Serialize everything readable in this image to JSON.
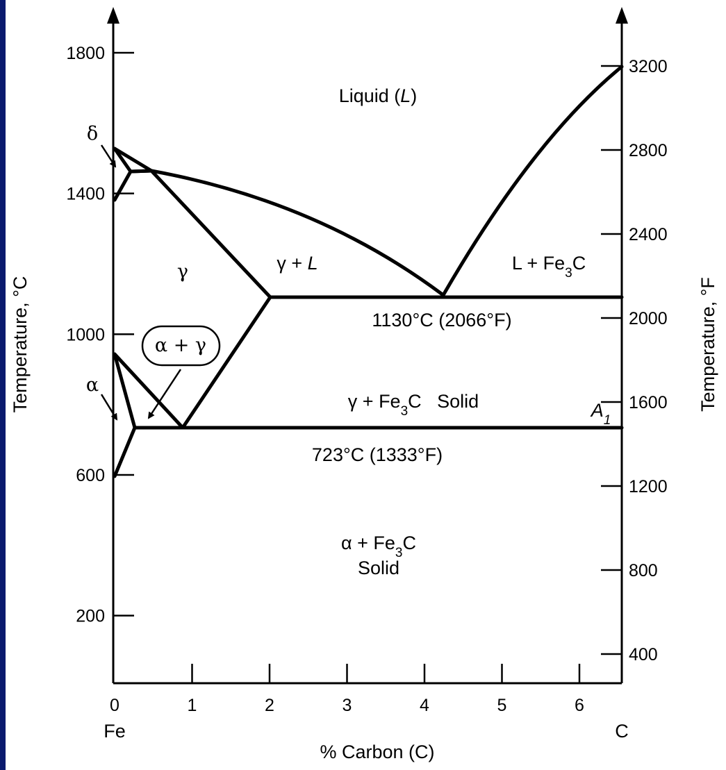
{
  "diagram": {
    "left_axis": {
      "label": "Temperature, °C",
      "ticks": [
        {
          "value": 1800,
          "label": "1800"
        },
        {
          "value": 1400,
          "label": "1400"
        },
        {
          "value": 1000,
          "label": "1000"
        },
        {
          "value": 600,
          "label": "600"
        },
        {
          "value": 200,
          "label": "200"
        }
      ]
    },
    "right_axis": {
      "label": "Temperature, °F",
      "ticks": [
        {
          "value": 3200,
          "label": "3200"
        },
        {
          "value": 2800,
          "label": "2800"
        },
        {
          "value": 2400,
          "label": "2400"
        },
        {
          "value": 2000,
          "label": "2000"
        },
        {
          "value": 1600,
          "label": "1600"
        },
        {
          "value": 1200,
          "label": "1200"
        },
        {
          "value": 800,
          "label": "800"
        },
        {
          "value": 400,
          "label": "400"
        }
      ]
    },
    "x_axis": {
      "label": "% Carbon (C)",
      "ticks": [
        {
          "value": 0,
          "label": "0"
        },
        {
          "value": 1,
          "label": "1"
        },
        {
          "value": 2,
          "label": "2"
        },
        {
          "value": 3,
          "label": "3"
        },
        {
          "value": 4,
          "label": "4"
        },
        {
          "value": 5,
          "label": "5"
        },
        {
          "value": 6,
          "label": "6"
        }
      ],
      "left_end_label": "Fe",
      "right_end_label": "C"
    },
    "regions": {
      "liquid": "Liquid (L)",
      "gamma": "γ",
      "gamma_liquid": "γ + L",
      "liquid_fe3c": "L + Fe3C",
      "eutectic": "1130°C (2066°F)",
      "alpha_gamma": "α + γ",
      "gamma_fe3c_solid": "γ + Fe3C   Solid",
      "a1": "A1",
      "eutectoid": "723°C (1333°F)",
      "alpha_fe3c": "α + Fe3C",
      "solid": "Solid",
      "delta": "δ",
      "alpha": "α"
    }
  }
}
